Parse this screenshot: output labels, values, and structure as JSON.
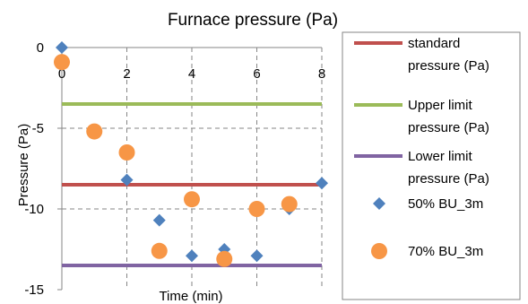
{
  "chart_data": {
    "type": "scatter",
    "title": "Furnace pressure (Pa)",
    "xlabel": "Time (min)",
    "ylabel": "Pressure (Pa)",
    "xlim": [
      0,
      8
    ],
    "ylim": [
      -15,
      0
    ],
    "xticks": [
      0,
      2,
      4,
      6,
      8
    ],
    "yticks": [
      0,
      -5,
      -10,
      -15
    ],
    "x_tick_labels": [
      "0",
      "2",
      "4",
      "6",
      "8"
    ],
    "y_tick_labels": [
      "0",
      "-5",
      "-10",
      "-15"
    ],
    "grid": "dashed gridlines at x = 2, 4, 6, 8 and y = -5, -10",
    "legend_position": "right",
    "reference_lines": [
      {
        "name": "standard pressure (Pa)",
        "y": -8.5,
        "color": "#c0504d"
      },
      {
        "name": "Upper limit pressure  (Pa)",
        "y": -3.5,
        "color": "#9bbb59"
      },
      {
        "name": "Lower limit pressure  (Pa)",
        "y": -13.5,
        "color": "#8064a2"
      }
    ],
    "series": [
      {
        "name": "50% BU_3m",
        "marker": "diamond",
        "color": "#4f81bd",
        "x": [
          0,
          1,
          2,
          3,
          4,
          5,
          6,
          7,
          8
        ],
        "y": [
          0,
          -5.2,
          -8.2,
          -10.7,
          -12.9,
          -12.5,
          -12.9,
          -10.0,
          -8.4
        ]
      },
      {
        "name": "70% BU_3m",
        "marker": "circle",
        "color": "#f79646",
        "x": [
          0,
          1,
          2,
          3,
          4,
          5,
          6,
          7
        ],
        "y": [
          -0.9,
          -5.2,
          -6.5,
          -12.6,
          -9.4,
          -13.1,
          -10.0,
          -9.7
        ]
      }
    ],
    "legend": [
      {
        "label_lines": [
          "standard",
          "pressure (Pa)"
        ],
        "symbol": "line",
        "color": "#c0504d"
      },
      {
        "label_lines": [
          "Upper limit",
          "pressure  (Pa)"
        ],
        "symbol": "line",
        "color": "#9bbb59"
      },
      {
        "label_lines": [
          "Lower limit",
          "pressure  (Pa)"
        ],
        "symbol": "line",
        "color": "#8064a2"
      },
      {
        "label_lines": [
          "50% BU_3m"
        ],
        "symbol": "diamond",
        "color": "#4f81bd"
      },
      {
        "label_lines": [
          "70% BU_3m"
        ],
        "symbol": "circle",
        "color": "#f79646"
      }
    ]
  }
}
